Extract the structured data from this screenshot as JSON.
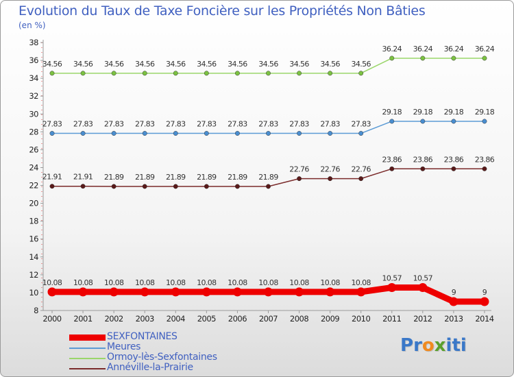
{
  "header": {
    "title": "Evolution du Taux de Taxe Foncière sur les Propriétés Non Bâties",
    "unit": "(en %)"
  },
  "logo": {
    "text": "Proxiti",
    "letters": [
      "P",
      "r",
      "o",
      "x",
      "i",
      "t",
      "i"
    ],
    "colors": [
      "#3a78c8",
      "#3a78c8",
      "#f08a20",
      "#5aa02c",
      "#3a78c8",
      "#3a78c8",
      "#3a78c8"
    ]
  },
  "chart_data": {
    "type": "line",
    "title": "Evolution du Taux de Taxe Foncière sur les Propriétés Non Bâties",
    "ylabel": "(en %)",
    "xlabel": "",
    "x": [
      "2000",
      "2001",
      "2002",
      "2003",
      "2004",
      "2005",
      "2006",
      "2007",
      "2008",
      "2009",
      "2010",
      "2011",
      "2012",
      "2013",
      "2014"
    ],
    "ylim": [
      8,
      38
    ],
    "yticks": [
      8,
      10,
      12,
      14,
      16,
      18,
      20,
      22,
      24,
      26,
      28,
      30,
      32,
      34,
      36,
      38
    ],
    "grid": false,
    "legend": "bottom-left",
    "series": [
      {
        "name": "SEXFONTAINES",
        "color": "#ee0000",
        "emphasis": true,
        "values": [
          10.08,
          10.08,
          10.08,
          10.08,
          10.08,
          10.08,
          10.08,
          10.08,
          10.08,
          10.08,
          10.08,
          10.57,
          10.57,
          9,
          9
        ],
        "labels": [
          "10.08",
          "10.08",
          "10.08",
          "10.08",
          "10.08",
          "10.08",
          "10.08",
          "10.08",
          "10.08",
          "10.08",
          "10.08",
          "10.57",
          "10.57",
          "9",
          "9"
        ]
      },
      {
        "name": "Meures",
        "color": "#5b9bd5",
        "marker": "#4a8ed0",
        "values": [
          27.83,
          27.83,
          27.83,
          27.83,
          27.83,
          27.83,
          27.83,
          27.83,
          27.83,
          27.83,
          27.83,
          29.18,
          29.18,
          29.18,
          29.18
        ],
        "labels": [
          "27.83",
          "27.83",
          "27.83",
          "27.83",
          "27.83",
          "27.83",
          "27.83",
          "27.83",
          "27.83",
          "27.83",
          "27.83",
          "29.18",
          "29.18",
          "29.18",
          "29.18"
        ]
      },
      {
        "name": "Ormoy-lès-Sexfontaines",
        "color": "#9ad66a",
        "marker": "#7cc242",
        "values": [
          34.56,
          34.56,
          34.56,
          34.56,
          34.56,
          34.56,
          34.56,
          34.56,
          34.56,
          34.56,
          34.56,
          36.24,
          36.24,
          36.24,
          36.24
        ],
        "labels": [
          "34.56",
          "34.56",
          "34.56",
          "34.56",
          "34.56",
          "34.56",
          "34.56",
          "34.56",
          "34.56",
          "34.56",
          "34.56",
          "36.24",
          "36.24",
          "36.24",
          "36.24"
        ]
      },
      {
        "name": "Annéville-la-Prairie",
        "color": "#7a2a2a",
        "marker": "#5a1a1a",
        "values": [
          21.91,
          21.91,
          21.89,
          21.89,
          21.89,
          21.89,
          21.89,
          21.89,
          22.76,
          22.76,
          22.76,
          23.86,
          23.86,
          23.86,
          23.86
        ],
        "labels": [
          "21.91",
          "21.91",
          "21.89",
          "21.89",
          "21.89",
          "21.89",
          "21.89",
          "21.89",
          "22.76",
          "22.76",
          "22.76",
          "23.86",
          "23.86",
          "23.86",
          "23.86"
        ]
      }
    ]
  }
}
